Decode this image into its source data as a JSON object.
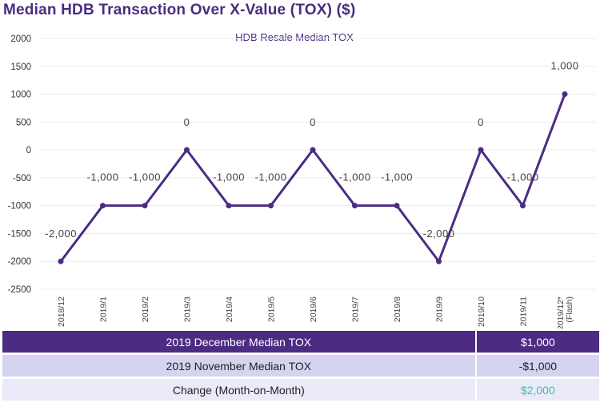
{
  "title": "Median HDB Transaction Over X-Value (TOX) ($)",
  "chart_data": {
    "type": "line",
    "title": "HDB Resale Median TOX",
    "categories": [
      "2018/12",
      "2019/1",
      "2019/2",
      "2019/3",
      "2019/4",
      "2019/5",
      "2019/6",
      "2019/7",
      "2019/8",
      "2019/9",
      "2019/10",
      "2019/11",
      "2019/12*\n(Flash)"
    ],
    "series": [
      {
        "name": "",
        "values": [
          -2000,
          -1000,
          -1000,
          0,
          -1000,
          -1000,
          0,
          -1000,
          -1000,
          -2000,
          0,
          -1000,
          1000
        ]
      }
    ],
    "data_labels": [
      "-2,000",
      "-1,000",
      "-1,000",
      "0",
      "-1,000",
      "-1,000",
      "0",
      "-1,000",
      "-1,000",
      "-2,000",
      "0",
      "-1,000",
      "1,000"
    ],
    "y_ticks": [
      2000,
      1500,
      1000,
      500,
      0,
      -500,
      -1000,
      -1500,
      -2000,
      -2500
    ],
    "y_tick_labels": [
      "2000",
      "1500",
      "1000",
      "500",
      "0",
      "-500",
      "-1000",
      "-1500",
      "-2000",
      "-2500"
    ],
    "ylim": [
      -2500,
      2000
    ],
    "grid": true,
    "line_color": "#4b2c82"
  },
  "table": {
    "rows": [
      {
        "label": "2019 December Median TOX",
        "value": "$1,000"
      },
      {
        "label": "2019 November Median TOX",
        "value": "-$1,000"
      },
      {
        "label": "Change (Month-on-Month)",
        "value": "$2,000"
      }
    ]
  }
}
